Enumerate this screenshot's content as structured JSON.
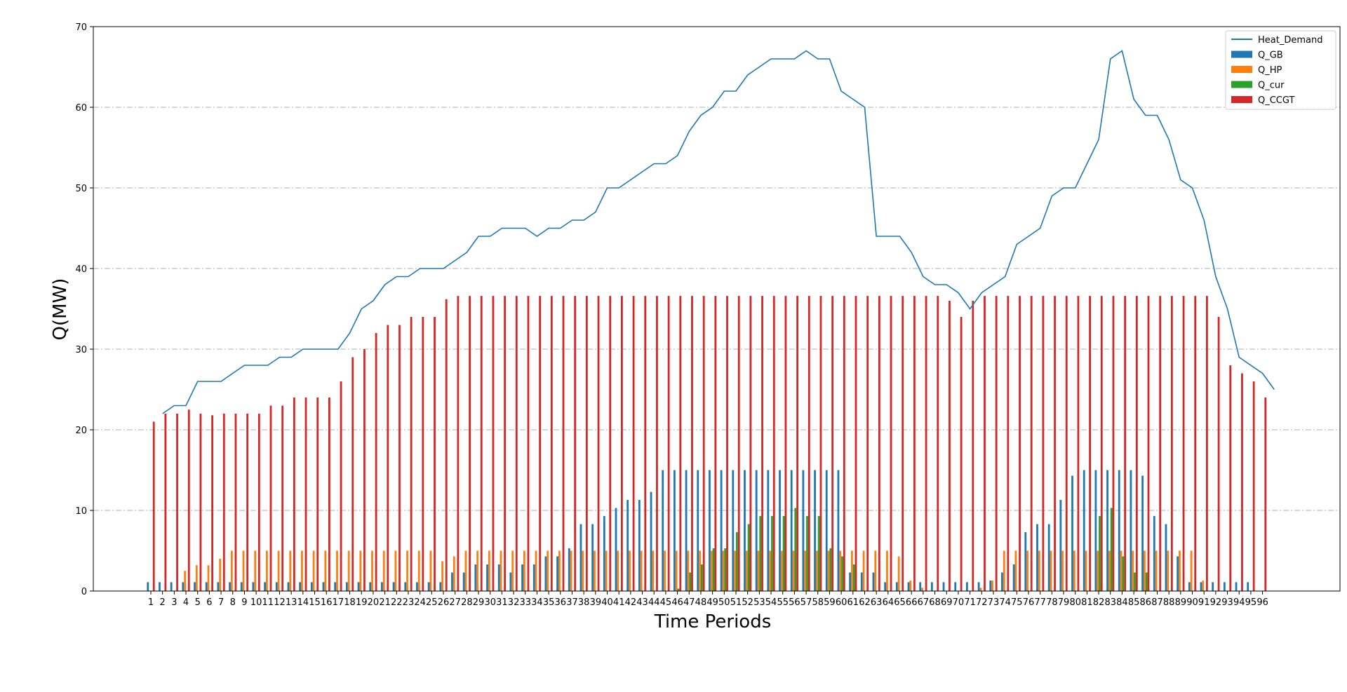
{
  "chart_data": {
    "type": "bar",
    "title": "",
    "xlabel": "Time Periods",
    "ylabel": "Q(MW)",
    "ylim": [
      0,
      70
    ],
    "yticks": [
      0,
      10,
      20,
      30,
      40,
      50,
      60,
      70
    ],
    "grid": "horizontal dash-dot",
    "legend_position": "top-right",
    "categories": [
      "1",
      "2",
      "3",
      "4",
      "5",
      "6",
      "7",
      "8",
      "9",
      "10",
      "11",
      "12",
      "13",
      "14",
      "15",
      "16",
      "17",
      "18",
      "19",
      "20",
      "21",
      "22",
      "23",
      "24",
      "25",
      "26",
      "27",
      "28",
      "29",
      "30",
      "31",
      "32",
      "33",
      "34",
      "35",
      "36",
      "37",
      "38",
      "39",
      "40",
      "41",
      "42",
      "43",
      "44",
      "45",
      "46",
      "47",
      "48",
      "49",
      "50",
      "51",
      "52",
      "53",
      "54",
      "55",
      "56",
      "57",
      "58",
      "59",
      "60",
      "61",
      "62",
      "63",
      "64",
      "65",
      "66",
      "67",
      "68",
      "69",
      "70",
      "71",
      "72",
      "73",
      "74",
      "75",
      "76",
      "77",
      "78",
      "79",
      "80",
      "81",
      "82",
      "83",
      "84",
      "85",
      "86",
      "87",
      "88",
      "89",
      "90",
      "91",
      "92",
      "93",
      "94",
      "95",
      "96"
    ],
    "line_series": {
      "name": "Heat_Demand",
      "color": "#1f77b4",
      "values": [
        22,
        23,
        23,
        26,
        26,
        26,
        27,
        28,
        28,
        28,
        29,
        29,
        30,
        30,
        30,
        30,
        32,
        35,
        36,
        38,
        39,
        39,
        40,
        40,
        40,
        41,
        42,
        44,
        44,
        45,
        45,
        45,
        44,
        45,
        45,
        46,
        46,
        47,
        50,
        50,
        51,
        52,
        53,
        53,
        54,
        57,
        59,
        60,
        62,
        62,
        64,
        65,
        66,
        66,
        66,
        67,
        66,
        66,
        62,
        61,
        60,
        44,
        44,
        44,
        42,
        39,
        38,
        38,
        37,
        35,
        37,
        38,
        39,
        43,
        44,
        45,
        49,
        50,
        50,
        53,
        56,
        66,
        67,
        61,
        59,
        59,
        56,
        51,
        50,
        46,
        39,
        35,
        29,
        28,
        27,
        25
      ]
    },
    "series": [
      {
        "name": "Q_GB",
        "color": "#1f77b4",
        "values": [
          1.1,
          1.1,
          1.1,
          1.1,
          1.1,
          1.1,
          1.1,
          1.1,
          1.1,
          1.1,
          1.1,
          1.1,
          1.1,
          1.1,
          1.1,
          1.1,
          1.1,
          1.1,
          1.1,
          1.1,
          1.1,
          1.1,
          1.1,
          1.1,
          1.1,
          1.1,
          2.3,
          2.3,
          3.3,
          3.3,
          3.3,
          2.3,
          3.3,
          3.3,
          4.3,
          4.3,
          5.3,
          8.3,
          8.3,
          9.3,
          10.3,
          11.3,
          11.3,
          12.3,
          15,
          15,
          15,
          15,
          15,
          15,
          15,
          15,
          15,
          15,
          15,
          15,
          15,
          15,
          15,
          15,
          2.3,
          2.3,
          2.3,
          1.1,
          1.1,
          1.1,
          1.1,
          1.1,
          1.1,
          1.1,
          1.1,
          1.1,
          1.3,
          2.3,
          3.3,
          7.3,
          8.3,
          8.3,
          11.3,
          14.3,
          15,
          15,
          15,
          15,
          15,
          14.3,
          9.3,
          8.3,
          4.3,
          1.1,
          1.1,
          1.1,
          1.1,
          1.1,
          1.1,
          0
        ]
      },
      {
        "name": "Q_HP",
        "color": "#ff7f0e",
        "values": [
          0,
          0,
          0,
          2.5,
          3.2,
          3.2,
          4,
          5,
          5,
          5,
          5,
          5,
          5,
          5,
          5,
          5,
          5,
          5,
          5,
          5,
          5,
          5,
          5,
          5,
          5,
          3.7,
          4.3,
          5,
          5,
          5,
          5,
          5,
          5,
          5,
          5,
          5,
          5,
          5,
          5,
          5,
          5,
          5,
          5,
          5,
          5,
          5,
          5,
          5,
          5,
          5,
          5,
          5,
          5,
          5,
          5,
          5,
          5,
          5,
          5,
          5,
          5,
          5,
          5,
          5,
          4.3,
          1.3,
          0.4,
          0,
          0,
          0,
          0,
          0.4,
          1.3,
          5,
          5,
          5,
          5,
          5,
          5,
          5,
          5,
          5,
          5,
          5,
          5,
          5,
          5,
          5,
          5,
          5,
          1.3,
          0,
          0,
          0,
          0,
          0
        ]
      },
      {
        "name": "Q_cur",
        "color": "#2ca02c",
        "values": [
          0,
          0,
          0,
          0,
          0,
          0,
          0,
          0,
          0,
          0,
          0,
          0,
          0,
          0,
          0,
          0,
          0,
          0,
          0,
          0,
          0,
          0,
          0,
          0,
          0,
          0,
          0,
          0,
          0,
          0,
          0,
          0,
          0,
          0,
          0,
          0,
          0,
          0,
          0,
          0,
          0,
          0,
          0,
          0,
          0,
          0.3,
          2.3,
          3.3,
          5.3,
          5.3,
          7.3,
          8.3,
          9.3,
          9.3,
          9.3,
          10.3,
          9.3,
          9.3,
          5.3,
          4.3,
          3.3,
          0,
          0,
          0,
          0,
          0,
          0,
          0,
          0,
          0,
          0,
          0,
          0,
          0,
          0,
          0,
          0,
          0,
          0,
          0,
          0,
          9.3,
          10.3,
          4.3,
          2.3,
          2.3,
          0,
          0,
          0,
          0,
          0,
          0,
          0,
          0,
          0,
          0
        ]
      },
      {
        "name": "Q_CCGT",
        "color": "#d62728",
        "values": [
          21,
          22,
          22,
          22.5,
          22,
          21.8,
          22,
          22,
          22,
          22,
          23,
          23,
          24,
          24,
          24,
          24,
          26,
          29,
          30,
          32,
          33,
          33,
          34,
          34,
          34,
          36.2,
          36.6,
          36.6,
          36.6,
          36.6,
          36.6,
          36.6,
          36.6,
          36.6,
          36.6,
          36.6,
          36.6,
          36.6,
          36.6,
          36.6,
          36.6,
          36.6,
          36.6,
          36.6,
          36.6,
          36.6,
          36.6,
          36.6,
          36.6,
          36.6,
          36.6,
          36.6,
          36.6,
          36.6,
          36.6,
          36.6,
          36.6,
          36.6,
          36.6,
          36.6,
          36.6,
          36.6,
          36.6,
          36.6,
          36.6,
          36.6,
          36.6,
          36.6,
          36,
          34,
          36,
          36.6,
          36.6,
          36.6,
          36.6,
          36.6,
          36.6,
          36.6,
          36.6,
          36.6,
          36.6,
          36.6,
          36.6,
          36.6,
          36.6,
          36.6,
          36.6,
          36.6,
          36.6,
          36.6,
          36.6,
          34,
          28,
          27,
          26,
          24
        ]
      }
    ]
  }
}
